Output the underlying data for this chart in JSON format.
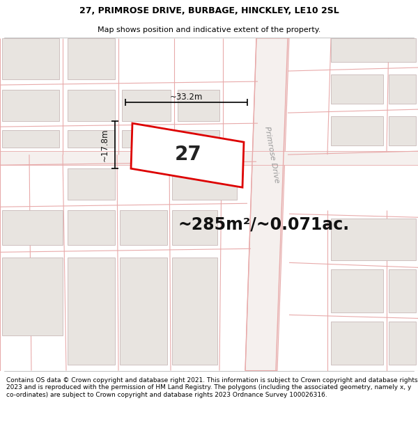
{
  "title_line1": "27, PRIMROSE DRIVE, BURBAGE, HINCKLEY, LE10 2SL",
  "title_line2": "Map shows position and indicative extent of the property.",
  "area_text": "~285m²/~0.071ac.",
  "property_number": "27",
  "dim_width": "~33.2m",
  "dim_height": "~17.8m",
  "road_label": "Primrose Drive",
  "footer_text": "Contains OS data © Crown copyright and database right 2021. This information is subject to Crown copyright and database rights 2023 and is reproduced with the permission of HM Land Registry. The polygons (including the associated geometry, namely x, y co-ordinates) are subject to Crown copyright and database rights 2023 Ordnance Survey 100026316.",
  "map_bg": "#ffffff",
  "road_fill": "#f5f0f0",
  "plot_fill": "#ffffff",
  "plot_edge": "#dd0000",
  "road_line_color": "#e8aaaa",
  "building_fill": "#e8e4e0",
  "building_edge": "#c8b8b8",
  "title_fontsize": 9.0,
  "subtitle_fontsize": 8.0,
  "area_fontsize": 17,
  "number_fontsize": 20,
  "footer_fontsize": 6.5,
  "dim_fontsize": 8.5,
  "road_label_fontsize": 8.0
}
